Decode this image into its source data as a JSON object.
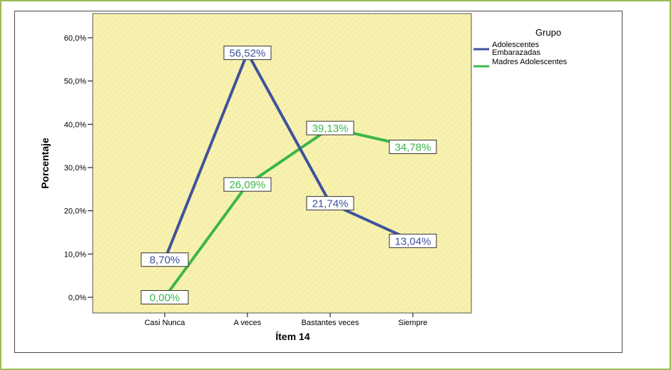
{
  "chart_data": {
    "type": "line",
    "categories": [
      "Casi Nunca",
      "A veces",
      "Bastantes veces",
      "Siempre"
    ],
    "xlabel": "Ítem 14",
    "ylabel": "Porcentaje",
    "ylim": [
      0,
      60
    ],
    "yticks": [
      "0,0%",
      "10,0%",
      "20,0%",
      "30,0%",
      "40,0%",
      "50,0%",
      "60,0%"
    ],
    "legend": {
      "title": "Grupo",
      "position": "right"
    },
    "series": [
      {
        "name": "Adolescentes Embarazadas",
        "name_lines": [
          "Adolescentes",
          "Embarazadas"
        ],
        "color": "#3f539c",
        "values": [
          8.7,
          56.52,
          21.74,
          13.04
        ],
        "labels": [
          "8,70%",
          "56,52%",
          "21,74%",
          "13,04%"
        ]
      },
      {
        "name": "Madres Adolescentes",
        "name_lines": [
          "Madres Adolescentes"
        ],
        "color": "#3cb64a",
        "values": [
          0.0,
          26.09,
          39.13,
          34.78
        ],
        "labels": [
          "0,00%",
          "26,09%",
          "39,13%",
          "34,78%"
        ]
      }
    ],
    "plot_background": "#f8f2b0"
  }
}
